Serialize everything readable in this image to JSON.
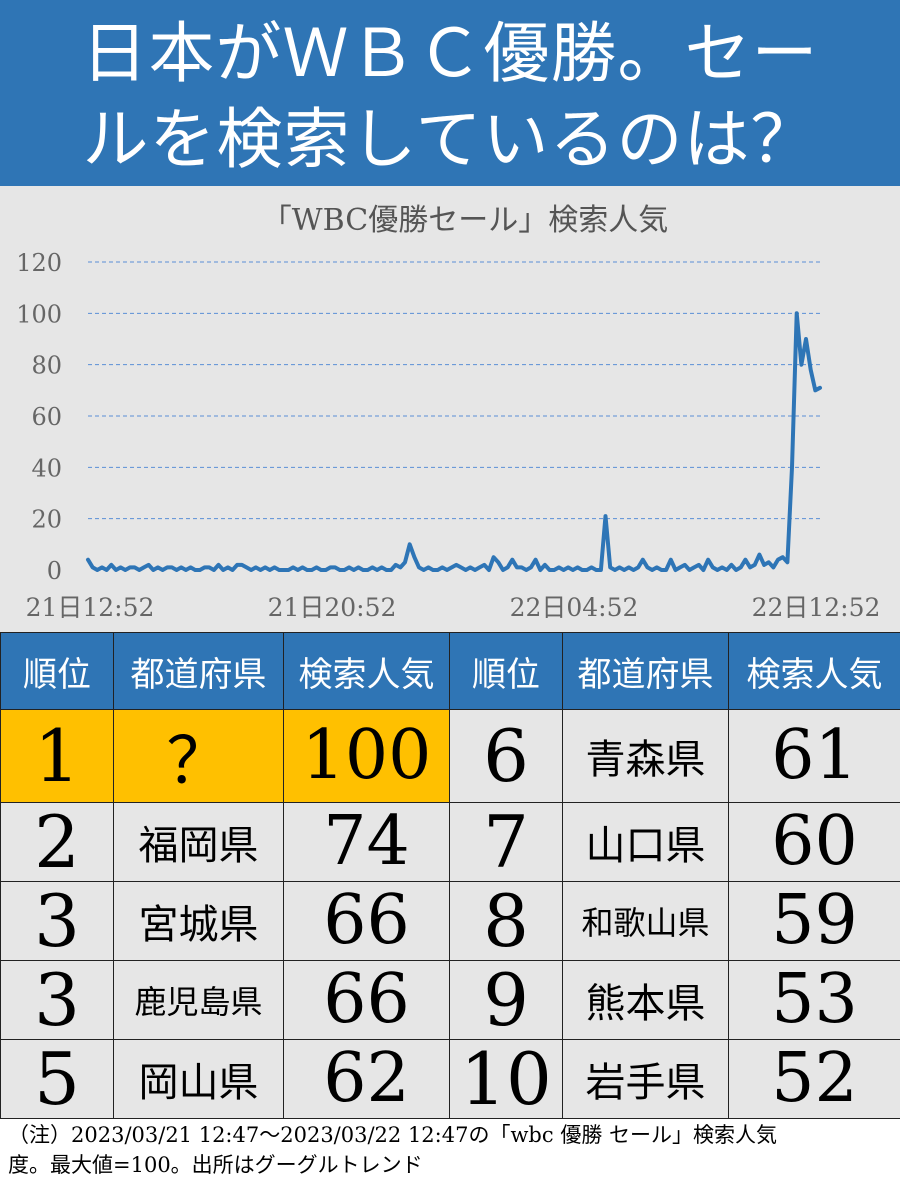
{
  "header": {
    "line1": "日本がＷＢＣ優勝。セー",
    "line2": "ルを検索しているのは？"
  },
  "chart_data": {
    "type": "line",
    "title": "「WBC優勝セール」検索人気",
    "xlabel": "",
    "ylabel": "",
    "ylim": [
      0,
      120
    ],
    "yticks": [
      0,
      20,
      40,
      60,
      80,
      100,
      120
    ],
    "xticks": [
      "21日12:52",
      "21日20:52",
      "22日04:52",
      "22日12:52"
    ],
    "grid": true,
    "color": "#2e75b6",
    "x_start": "21日12:52",
    "x_end": "22日12:52",
    "samples_per_hour": 6,
    "values": [
      4,
      1,
      0,
      1,
      0,
      2,
      0,
      1,
      0,
      1,
      1,
      0,
      1,
      2,
      0,
      1,
      0,
      1,
      1,
      0,
      1,
      0,
      1,
      0,
      0,
      1,
      1,
      0,
      2,
      0,
      1,
      0,
      2,
      2,
      1,
      0,
      1,
      0,
      1,
      0,
      1,
      0,
      0,
      0,
      1,
      0,
      1,
      0,
      0,
      1,
      0,
      0,
      1,
      1,
      0,
      0,
      1,
      0,
      1,
      0,
      0,
      1,
      0,
      1,
      0,
      0,
      2,
      1,
      3,
      10,
      5,
      1,
      0,
      1,
      0,
      0,
      1,
      0,
      1,
      2,
      1,
      0,
      1,
      0,
      1,
      2,
      0,
      5,
      3,
      0,
      1,
      4,
      1,
      1,
      0,
      1,
      4,
      0,
      2,
      0,
      0,
      1,
      0,
      1,
      0,
      1,
      0,
      0,
      1,
      0,
      0,
      21,
      1,
      0,
      1,
      0,
      1,
      0,
      1,
      4,
      1,
      0,
      1,
      0,
      0,
      4,
      0,
      1,
      2,
      0,
      1,
      2,
      0,
      4,
      1,
      0,
      1,
      0,
      2,
      0,
      1,
      4,
      1,
      2,
      6,
      2,
      3,
      1,
      4,
      5,
      3,
      40,
      100,
      80,
      90,
      78,
      70,
      71
    ]
  },
  "table": {
    "headers": [
      "順位",
      "都道府県",
      "検索人気",
      "順位",
      "都道府県",
      "検索人気"
    ],
    "rows": [
      {
        "rank_l": "1",
        "pref_l": "？",
        "val_l": "100",
        "rank_r": "6",
        "pref_r": "青森県",
        "val_r": "61"
      },
      {
        "rank_l": "2",
        "pref_l": "福岡県",
        "val_l": "74",
        "rank_r": "7",
        "pref_r": "山口県",
        "val_r": "60"
      },
      {
        "rank_l": "3",
        "pref_l": "宮城県",
        "val_l": "66",
        "rank_r": "8",
        "pref_r": "和歌山県",
        "val_r": "59"
      },
      {
        "rank_l": "3",
        "pref_l": "鹿児島県",
        "val_l": "66",
        "rank_r": "9",
        "pref_r": "熊本県",
        "val_r": "53"
      },
      {
        "rank_l": "5",
        "pref_l": "岡山県",
        "val_l": "62",
        "rank_r": "10",
        "pref_r": "岩手県",
        "val_r": "52"
      }
    ],
    "highlight_color": "#ffc000"
  },
  "note": {
    "line1": "（注）2023/03/21 12:47～2023/03/22 12:47の「wbc 優勝 セール」検索人気",
    "line2": "度。最大値=100。出所はグーグルトレンド"
  }
}
